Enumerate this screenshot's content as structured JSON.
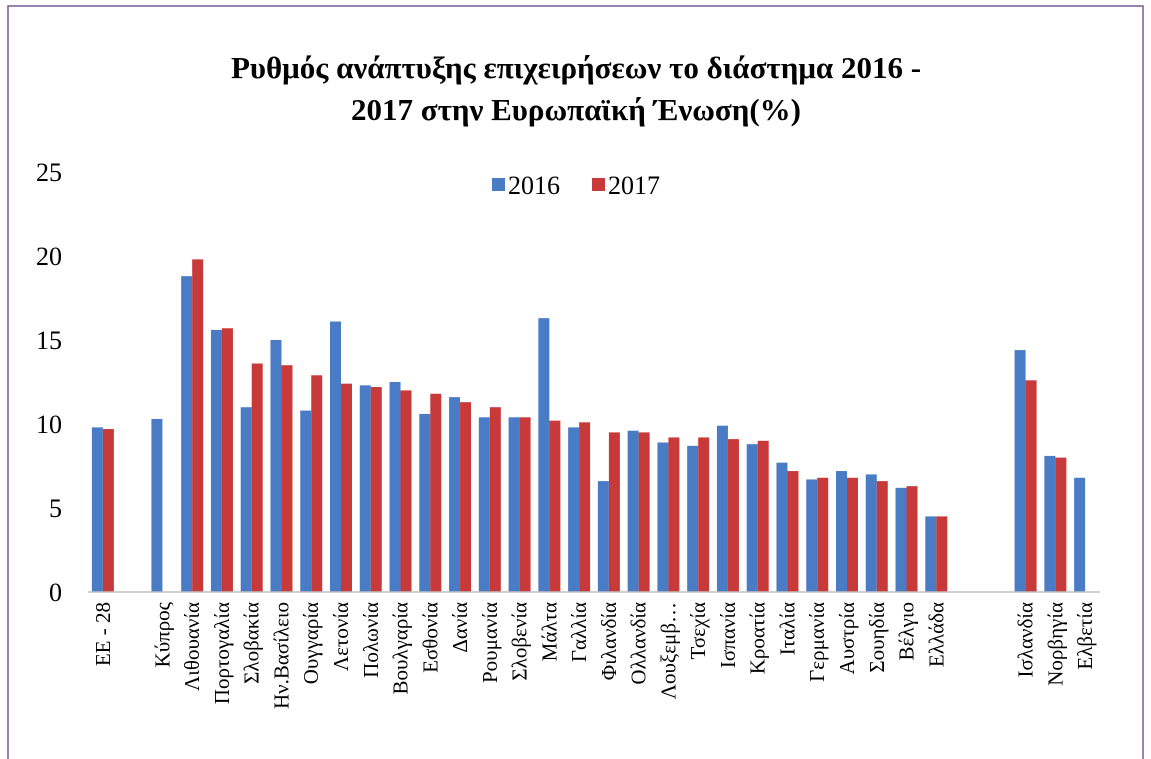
{
  "chart_data": {
    "type": "bar",
    "title": [
      "Ρυθμός ανάπτυξης επιχειρήσεων το διάστημα 2016 -",
      "2017 στην Ευρωπαϊκή Ένωση(%)"
    ],
    "categories": [
      "ΕΕ - 28",
      null,
      "Κύπρος",
      "Λιθουανία",
      "Πορτογαλία",
      "Σλοβακία",
      "Ην.Βασίλειο",
      "Ουγγαρία",
      "Λετονία",
      "Πολωνία",
      "Βουλγαρία",
      "Εσθονία",
      "Δανία",
      "Ρουμανία",
      "Σλοβενία",
      "Μάλτα",
      "Γαλλία",
      "Φιλανδία",
      "Ολλανδία",
      "Λουξεμβ…",
      "Τσεχία",
      "Ισπανία",
      "Κροατία",
      "Ιταλία",
      "Γερμανία",
      "Αυστρία",
      "Σουηδία",
      "Βέλγιο",
      "Ελλάδα",
      null,
      null,
      "Ισλανδία",
      "Νορβηγία",
      "Ελβετία"
    ],
    "series": [
      {
        "name": "2016",
        "color": "#4a7cc6",
        "values": [
          9.8,
          null,
          10.3,
          18.8,
          15.6,
          11.0,
          15.0,
          10.8,
          16.1,
          12.3,
          12.5,
          10.6,
          11.6,
          10.4,
          10.4,
          16.3,
          9.8,
          6.6,
          9.6,
          8.9,
          8.7,
          9.9,
          8.8,
          7.7,
          6.7,
          7.2,
          7.0,
          6.2,
          4.5,
          null,
          null,
          14.4,
          8.1,
          6.8
        ]
      },
      {
        "name": "2017",
        "color": "#c83a3a",
        "values": [
          9.7,
          null,
          null,
          19.8,
          15.7,
          13.6,
          13.5,
          12.9,
          12.4,
          12.2,
          12.0,
          11.8,
          11.3,
          11.0,
          10.4,
          10.2,
          10.1,
          9.5,
          9.5,
          9.2,
          9.2,
          9.1,
          9.0,
          7.2,
          6.8,
          6.8,
          6.6,
          6.3,
          4.5,
          null,
          null,
          12.6,
          8.0,
          null
        ]
      }
    ],
    "ylim": [
      0,
      25
    ],
    "yticks": [
      0,
      5,
      10,
      15,
      20,
      25
    ],
    "grid": false,
    "legend": "top"
  }
}
